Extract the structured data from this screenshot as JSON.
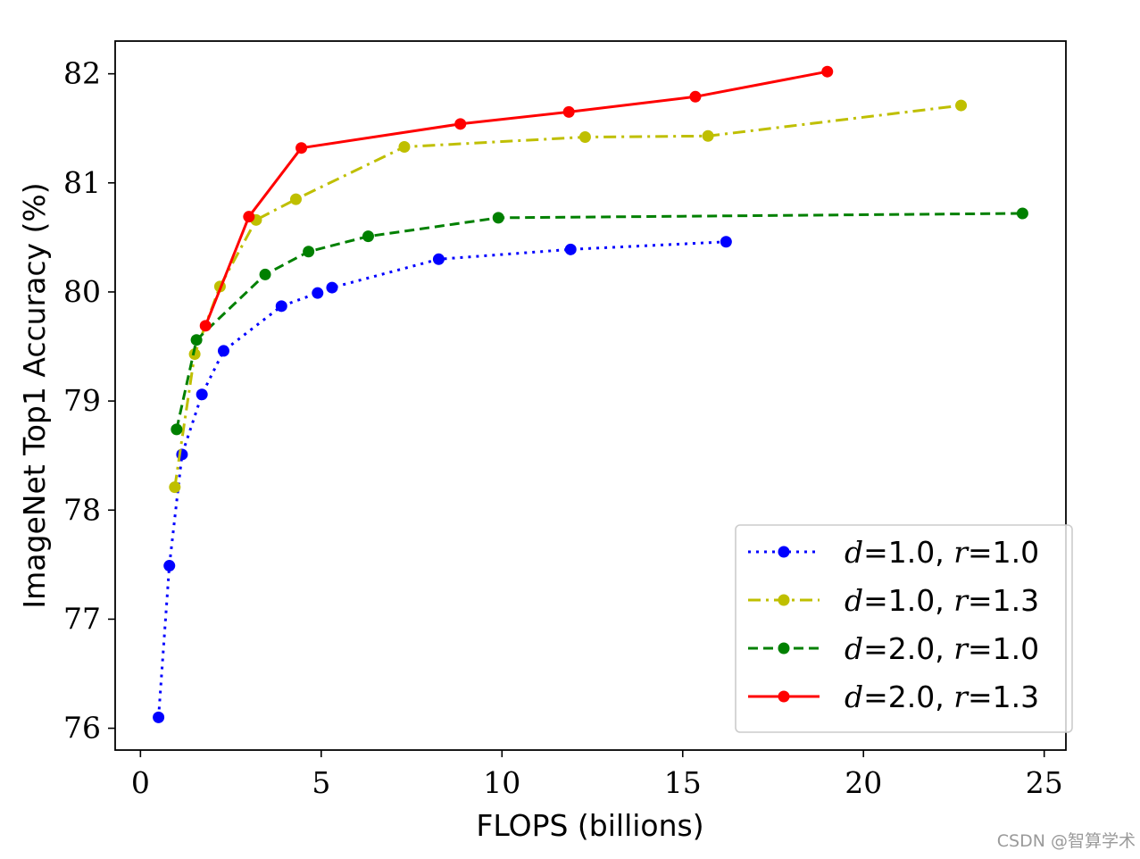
{
  "chart_data": {
    "type": "line",
    "xlabel": "FLOPS (billions)",
    "ylabel": "ImageNet Top1 Accuracy (%)",
    "xlim": [
      -0.7,
      25.6
    ],
    "ylim": [
      75.8,
      82.3
    ],
    "xticks": [
      0,
      5,
      10,
      15,
      20,
      25
    ],
    "yticks": [
      76,
      77,
      78,
      79,
      80,
      81,
      82
    ],
    "grid": false,
    "legend_position": "bottom-right",
    "series": [
      {
        "name_var1": "d",
        "name_val1": "=1.0, ",
        "name_var2": "r",
        "name_val2": "=1.0",
        "color": "#0000ff",
        "style": "dotted",
        "x": [
          0.5,
          0.8,
          1.15,
          1.7,
          2.3,
          3.9,
          4.9,
          5.3,
          8.25,
          11.9,
          16.2
        ],
        "y": [
          76.1,
          77.49,
          78.51,
          79.06,
          79.46,
          79.87,
          79.99,
          80.04,
          80.3,
          80.39,
          80.46
        ]
      },
      {
        "name_var1": "d",
        "name_val1": "=1.0, ",
        "name_var2": "r",
        "name_val2": "=1.3",
        "color": "#bfbf00",
        "style": "dashdot",
        "x": [
          0.95,
          1.5,
          2.2,
          3.2,
          4.3,
          7.3,
          12.3,
          15.7,
          22.7
        ],
        "y": [
          78.21,
          79.43,
          80.05,
          80.66,
          80.85,
          81.33,
          81.42,
          81.43,
          81.71
        ]
      },
      {
        "name_var1": "d",
        "name_val1": "=2.0, ",
        "name_var2": "r",
        "name_val2": "=1.0",
        "color": "#008000",
        "style": "dashed",
        "x": [
          1.0,
          1.55,
          3.45,
          4.65,
          6.3,
          9.9,
          24.4
        ],
        "y": [
          78.74,
          79.56,
          80.16,
          80.37,
          80.51,
          80.68,
          80.72
        ]
      },
      {
        "name_var1": "d",
        "name_val1": "=2.0, ",
        "name_var2": "r",
        "name_val2": "=1.3",
        "color": "#ff0000",
        "style": "solid",
        "x": [
          1.8,
          3.0,
          4.45,
          8.85,
          11.85,
          15.35,
          19.0
        ],
        "y": [
          79.69,
          80.69,
          81.32,
          81.54,
          81.65,
          81.79,
          82.02
        ]
      }
    ]
  },
  "watermark": "CSDN @智算学术"
}
